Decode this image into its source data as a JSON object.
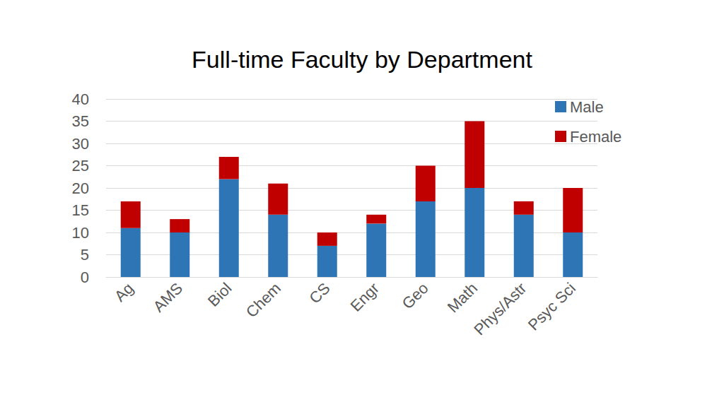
{
  "chart_data": {
    "type": "bar",
    "title": "Full-time Faculty by Department",
    "categories": [
      "Ag",
      "AMS",
      "Biol",
      "Chem",
      "CS",
      "Engr",
      "Geo",
      "Math",
      "Phys/Astr",
      "Psyc Sci"
    ],
    "series": [
      {
        "name": "Male",
        "color": "#2e75b6",
        "values": [
          11,
          10,
          22,
          14,
          7,
          12,
          17,
          20,
          14,
          10
        ]
      },
      {
        "name": "Female",
        "color": "#c00000",
        "values": [
          6,
          3,
          5,
          7,
          3,
          2,
          8,
          15,
          3,
          10
        ]
      }
    ],
    "stacked": true,
    "ylim": [
      0,
      40
    ],
    "yticks": [
      0,
      5,
      10,
      15,
      20,
      25,
      30,
      35,
      40
    ],
    "grid": true,
    "legend": "top-right"
  }
}
